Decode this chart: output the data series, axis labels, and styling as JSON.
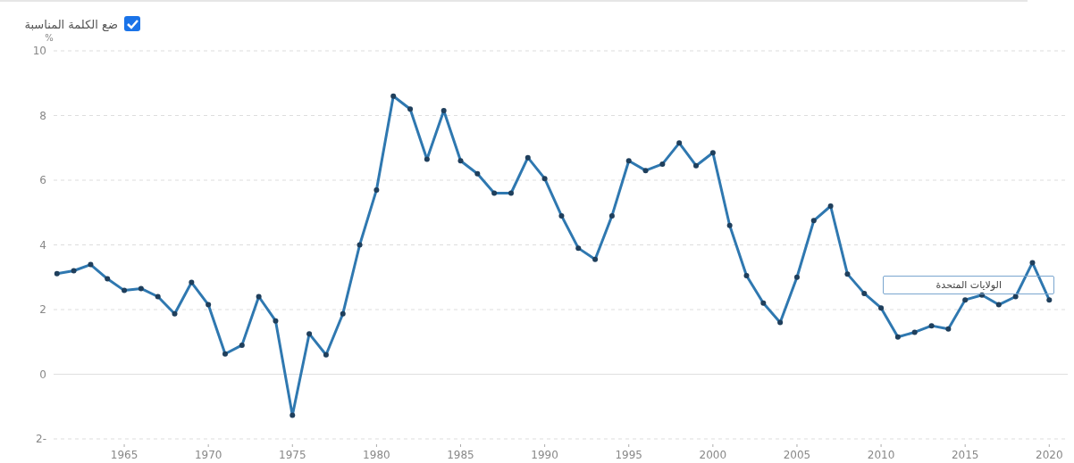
{
  "chart_data": {
    "type": "line",
    "ylabel": "%",
    "annotations": [
      "ضع الكلمة المناسبة"
    ],
    "x": [
      1961,
      1962,
      1963,
      1964,
      1965,
      1966,
      1967,
      1968,
      1969,
      1970,
      1971,
      1972,
      1973,
      1974,
      1975,
      1976,
      1977,
      1978,
      1979,
      1980,
      1981,
      1982,
      1983,
      1984,
      1985,
      1986,
      1987,
      1988,
      1989,
      1990,
      1991,
      1992,
      1993,
      1994,
      1995,
      1996,
      1997,
      1998,
      1999,
      2000,
      2001,
      2002,
      2003,
      2004,
      2005,
      2006,
      2007,
      2008,
      2009,
      2010,
      2011,
      2012,
      2013,
      2014,
      2015,
      2016,
      2017,
      2018,
      2019,
      2020
    ],
    "series": [
      {
        "name": "الولايات المتحدة",
        "color": "#2f78b0",
        "values": [
          3.11,
          3.2,
          3.39,
          2.95,
          2.59,
          2.65,
          2.4,
          1.87,
          2.84,
          2.15,
          0.63,
          0.9,
          2.4,
          1.65,
          -1.27,
          1.25,
          0.6,
          1.87,
          4.0,
          5.7,
          8.6,
          8.2,
          6.65,
          8.15,
          6.6,
          6.2,
          5.6,
          5.6,
          6.7,
          6.05,
          4.9,
          3.9,
          3.55,
          4.9,
          6.6,
          6.3,
          6.5,
          7.15,
          6.45,
          6.85,
          4.6,
          3.05,
          2.2,
          1.6,
          3.0,
          4.75,
          5.2,
          3.1,
          2.5,
          2.05,
          1.15,
          1.3,
          1.5,
          1.4,
          2.3,
          2.45,
          2.15,
          2.4,
          3.45,
          2.3
        ]
      }
    ],
    "xlim": [
      1960.8,
      2021.1
    ],
    "xticks": [
      1965,
      1970,
      1975,
      1980,
      1985,
      1990,
      1995,
      2000,
      2005,
      2010,
      2015,
      2020
    ],
    "ylim": [
      -2,
      10
    ],
    "yticks": [
      {
        "value": -2,
        "label": "2-"
      },
      0,
      2,
      4,
      6,
      8,
      10
    ],
    "grid": "y",
    "marker": "circle",
    "line_style": "solid",
    "legend": false
  }
}
